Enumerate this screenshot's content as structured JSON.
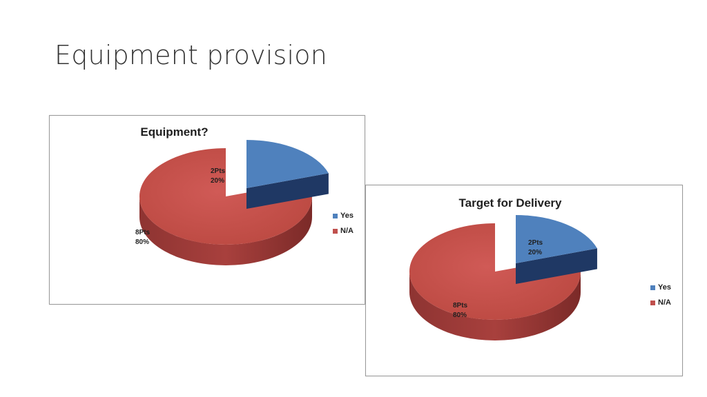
{
  "slide": {
    "title": "Equipment provision"
  },
  "colors": {
    "yes": "#4F81BD",
    "na": "#C0504D",
    "yes_dark": "#1F3864",
    "na_dark": "#7B2A28"
  },
  "chart_data": [
    {
      "type": "pie",
      "title": "Equipment?",
      "categories": [
        "Yes",
        "N/A"
      ],
      "values": [
        20,
        80
      ],
      "labels": [
        {
          "line1": "2Pts",
          "line2": "20%"
        },
        {
          "line1": "8Pts",
          "line2": "80%"
        }
      ],
      "legend": [
        "Yes",
        "N/A"
      ],
      "legend_position": "right",
      "style": "3d-exploded"
    },
    {
      "type": "pie",
      "title": "Target for Delivery",
      "categories": [
        "Yes",
        "N/A"
      ],
      "values": [
        20,
        80
      ],
      "labels": [
        {
          "line1": "2Pts",
          "line2": "20%"
        },
        {
          "line1": "8Pts",
          "line2": "80%"
        }
      ],
      "legend": [
        "Yes",
        "N/A"
      ],
      "legend_position": "right",
      "style": "3d-exploded"
    }
  ]
}
